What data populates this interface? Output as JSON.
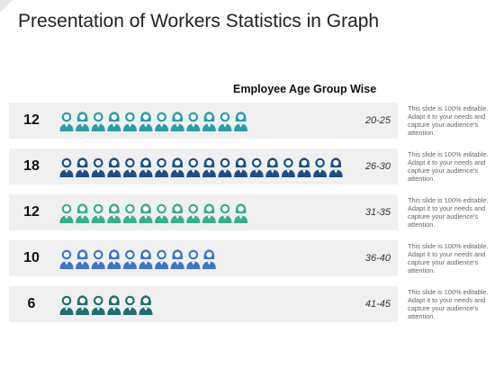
{
  "title": "Presentation of Workers Statistics in Graph",
  "chart_data": {
    "type": "bar",
    "title": "Employee Age Group Wise",
    "categories": [
      "20-25",
      "26-30",
      "31-35",
      "36-40",
      "41-45"
    ],
    "values": [
      12,
      18,
      12,
      10,
      6
    ],
    "value_labels": [
      "12",
      "18",
      "12",
      "10",
      "6"
    ],
    "colors": [
      "#2a9dab",
      "#1f4f82",
      "#3aad8e",
      "#3f76c4",
      "#1f6f72"
    ],
    "notes": [
      "This slide is 100% editable. Adapt it to your needs and capture your audience's attention.",
      "This slide is 100% editable. Adapt it to your needs and capture your audience's attention.",
      "This slide is 100% editable. Adapt it to your needs and capture your audience's attention.",
      "This slide is 100% editable. Adapt it to your needs and capture your audience's attention.",
      "This slide is 100% editable. Adapt it to your needs and capture your audience's attention."
    ]
  }
}
